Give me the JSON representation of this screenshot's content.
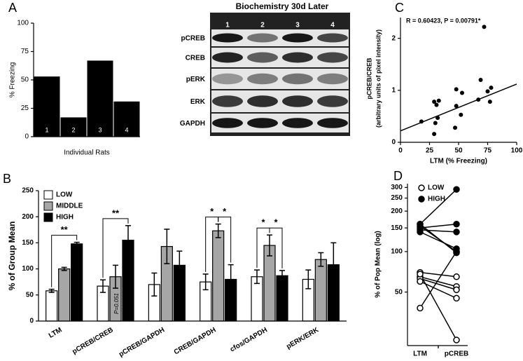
{
  "chart_data": [
    {
      "type": "bar",
      "label": "A",
      "ylabel": "% Freezing",
      "xlabel": "Individual Rats",
      "categories": [
        "1",
        "2",
        "3",
        "4"
      ],
      "values": [
        53,
        17,
        67,
        31
      ],
      "color": "#000000",
      "ylim": [
        0,
        100
      ],
      "yticks": [
        0,
        25,
        50,
        75,
        100
      ]
    },
    {
      "type": "blot",
      "title": "Biochemistry 30d Later",
      "lanes": [
        "1",
        "2",
        "3",
        "4"
      ],
      "rows": [
        "pCREB",
        "CREB",
        "pERK",
        "ERK",
        "GAPDH"
      ]
    },
    {
      "type": "grouped_bar",
      "label": "B",
      "ylabel": "% of Group Mean",
      "categories": [
        "LTM",
        "pCREB/CREB",
        "pCREB/GAPDH",
        "CREB/GAPDH",
        "cfos/GAPDH",
        "pERK/ERK"
      ],
      "series": [
        {
          "name": "LOW",
          "color": "#ffffff",
          "values": [
            58,
            67,
            70,
            75,
            85,
            80
          ],
          "errors": [
            3,
            12,
            22,
            15,
            13,
            18
          ]
        },
        {
          "name": "MIDDLE",
          "color": "#a6a6a6",
          "values": [
            100,
            85,
            143,
            173,
            145,
            118
          ],
          "errors": [
            3,
            22,
            33,
            13,
            20,
            13
          ]
        },
        {
          "name": "HIGH",
          "color": "#000000",
          "values": [
            148,
            155,
            107,
            80,
            87,
            108
          ],
          "errors": [
            3,
            28,
            27,
            28,
            10,
            42
          ]
        }
      ],
      "ylim": [
        0,
        250
      ],
      "yticks": [
        0,
        50,
        100,
        150,
        200,
        250
      ],
      "legend": "upper left",
      "annotations": [
        {
          "text": "**",
          "category": 0,
          "from": 0,
          "to": 2
        },
        {
          "text": "**",
          "category": 1,
          "from": 0,
          "to": 2
        },
        {
          "text": "*",
          "category": 3,
          "from": 0,
          "to": 1
        },
        {
          "text": "*",
          "category": 3,
          "from": 1,
          "to": 2
        },
        {
          "text": "*",
          "category": 4,
          "from": 0,
          "to": 1
        },
        {
          "text": "*",
          "category": 4,
          "from": 1,
          "to": 2
        }
      ],
      "bar_note": {
        "text": "P=0.051",
        "category": 1,
        "series": 1
      }
    },
    {
      "type": "scatter",
      "label": "C",
      "annotation": "R = 0.60423, P = 0.00791*",
      "xlabel": "LTM (% Freezing)",
      "ylabel": [
        "pCREB/CREB",
        "(arbitrary units of pixel intensity)"
      ],
      "x": [
        18,
        29,
        29,
        30,
        31,
        32,
        33,
        47,
        48,
        48,
        52,
        53,
        67,
        69,
        72,
        75,
        77,
        78
      ],
      "values": [
        0.4,
        0.16,
        0.78,
        0.37,
        0.72,
        0.47,
        0.8,
        0.28,
        1.02,
        0.7,
        0.53,
        0.95,
        0.82,
        1.2,
        2.22,
        0.98,
        0.78,
        1.05
      ],
      "color": "#000000",
      "fit": {
        "x": [
          0,
          100
        ],
        "y": [
          0.22,
          1.12
        ]
      },
      "xlim": [
        0,
        100
      ],
      "xticks": [
        0,
        25,
        50,
        75,
        100
      ],
      "ylim": [
        0,
        2.4
      ],
      "yticks": [
        0,
        1,
        2
      ]
    },
    {
      "type": "paired",
      "label": "D",
      "ylabel": "% of Pop Mean (log)",
      "categories": [
        "LTM",
        "pCREB"
      ],
      "log": true,
      "ylim": [
        20,
        320
      ],
      "yticks": [
        50,
        100,
        150,
        200,
        250,
        300
      ],
      "legend": "upper left",
      "series": [
        {
          "name": "LOW",
          "color": "#ffffff",
          "values": [
            [
              70,
              65
            ],
            [
              65,
              55
            ],
            [
              63,
              52
            ],
            [
              60,
              45
            ],
            [
              38,
              100
            ],
            [
              68,
              22
            ]
          ]
        },
        {
          "name": "HIGH",
          "color": "#000000",
          "values": [
            [
              160,
              290
            ],
            [
              155,
              100
            ],
            [
              150,
              160
            ],
            [
              145,
              140
            ],
            [
              140,
              105
            ],
            [
              160,
              98
            ]
          ]
        }
      ]
    }
  ]
}
